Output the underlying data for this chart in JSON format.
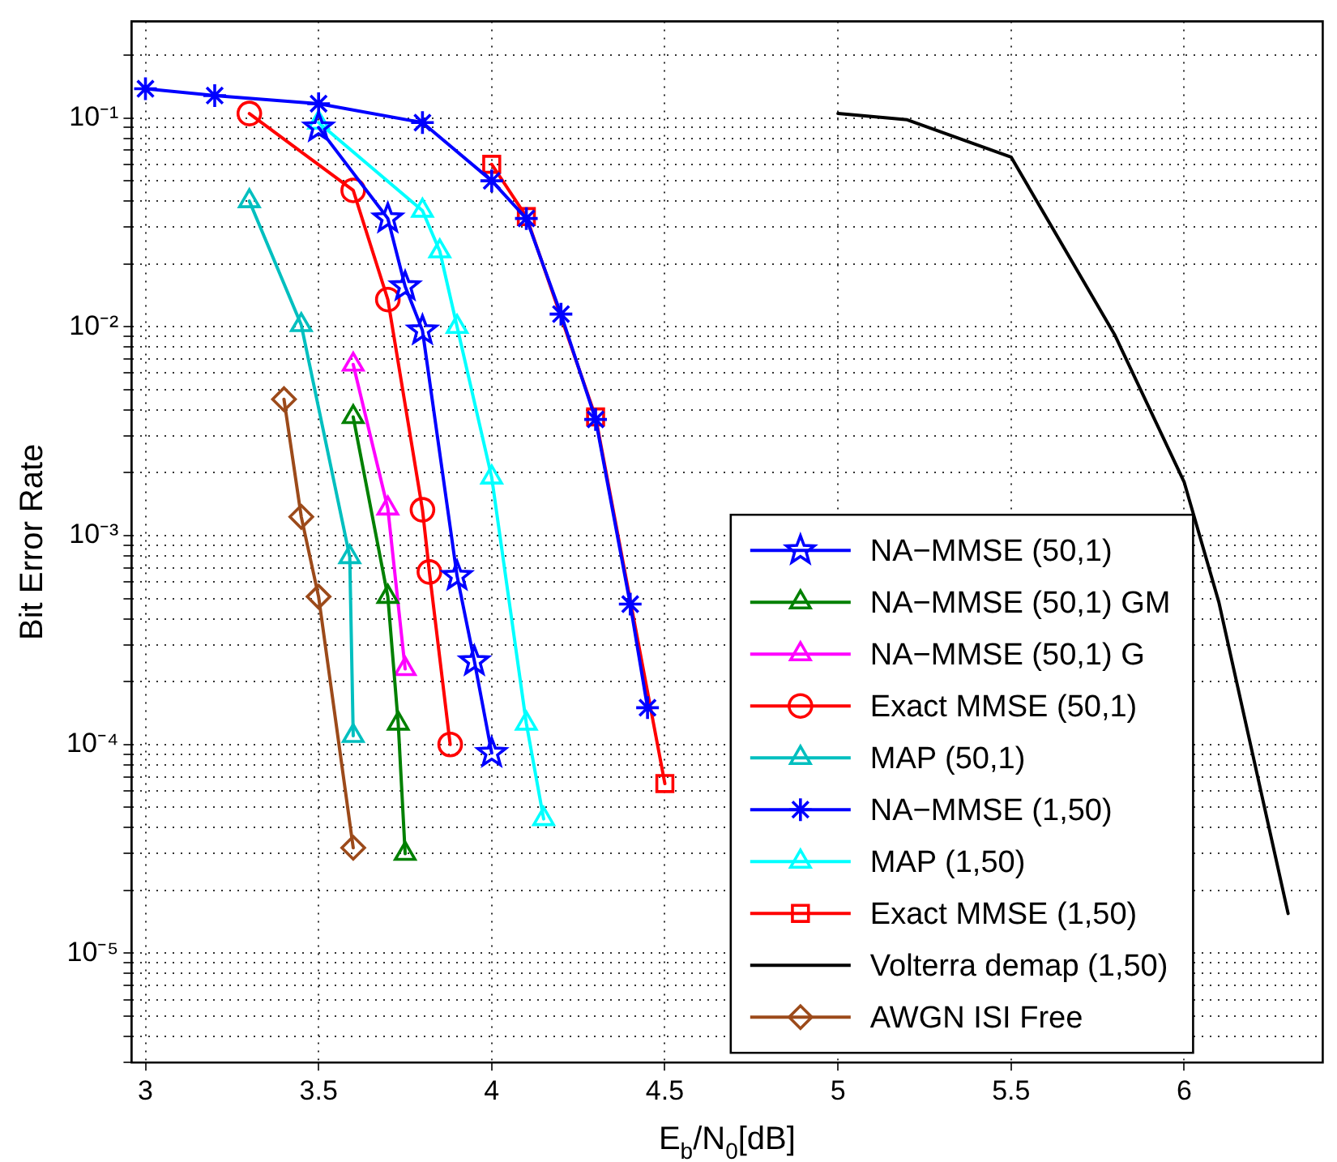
{
  "chart_data": {
    "type": "line",
    "xlabel": "E$_{b}$/N$_{0}$[dB]",
    "ylabel": "Bit Error Rate",
    "log": "y",
    "grid": true,
    "legend": "bottom right",
    "line_style": "solid",
    "xlim": [
      2.96,
      6.4
    ],
    "xticks": [
      3,
      3.5,
      4,
      4.5,
      5,
      5.5,
      6
    ],
    "ylim": [
      3e-06,
      0.29
    ],
    "yticks": [
      {
        "value": 3e-06,
        "label": null
      },
      {
        "value": 4e-06,
        "label": null
      },
      {
        "value": 5e-06,
        "label": null
      },
      {
        "value": 6e-06,
        "label": null
      },
      {
        "value": 7e-06,
        "label": null
      },
      {
        "value": 8e-06,
        "label": null
      },
      {
        "value": 9e-06,
        "label": null
      },
      {
        "value": 1e-05,
        "label": "10⁻⁵"
      },
      {
        "value": 2e-05,
        "label": null
      },
      {
        "value": 3e-05,
        "label": null
      },
      {
        "value": 4e-05,
        "label": null
      },
      {
        "value": 5e-05,
        "label": null
      },
      {
        "value": 6e-05,
        "label": null
      },
      {
        "value": 7e-05,
        "label": null
      },
      {
        "value": 8e-05,
        "label": null
      },
      {
        "value": 9e-05,
        "label": null
      },
      {
        "value": 0.0001,
        "label": "10⁻⁴"
      },
      {
        "value": 0.0002,
        "label": null
      },
      {
        "value": 0.0003,
        "label": null
      },
      {
        "value": 0.0004,
        "label": null
      },
      {
        "value": 0.0005,
        "label": null
      },
      {
        "value": 0.0006,
        "label": null
      },
      {
        "value": 0.0007,
        "label": null
      },
      {
        "value": 0.0008,
        "label": null
      },
      {
        "value": 0.0009,
        "label": null
      },
      {
        "value": 0.001,
        "label": "10⁻³"
      },
      {
        "value": 0.002,
        "label": null
      },
      {
        "value": 0.003,
        "label": null
      },
      {
        "value": 0.004,
        "label": null
      },
      {
        "value": 0.005,
        "label": null
      },
      {
        "value": 0.006,
        "label": null
      },
      {
        "value": 0.007,
        "label": null
      },
      {
        "value": 0.008,
        "label": null
      },
      {
        "value": 0.009,
        "label": null
      },
      {
        "value": 0.01,
        "label": "10⁻²"
      },
      {
        "value": 0.02,
        "label": null
      },
      {
        "value": 0.03,
        "label": null
      },
      {
        "value": 0.04,
        "label": null
      },
      {
        "value": 0.05,
        "label": null
      },
      {
        "value": 0.06,
        "label": null
      },
      {
        "value": 0.07,
        "label": null
      },
      {
        "value": 0.08,
        "label": null
      },
      {
        "value": 0.09,
        "label": null
      },
      {
        "value": 0.1,
        "label": "10⁻¹"
      },
      {
        "value": 0.2,
        "label": null
      }
    ],
    "series": [
      {
        "name": "NA−MMSE (50,1)",
        "color": "#0000ff",
        "marker": "star",
        "x": [
          3.5,
          3.7,
          3.75,
          3.8,
          3.9,
          3.95,
          4.0
        ],
        "values": [
          0.09,
          0.033,
          0.0156,
          0.0096,
          0.00064,
          0.00025,
          9.1e-05
        ]
      },
      {
        "name": "NA−MMSE (50,1) GM",
        "color": "#008000",
        "marker": "triangle",
        "x": [
          3.6,
          3.7,
          3.73,
          3.75
        ],
        "values": [
          0.0037,
          0.00051,
          0.000126,
          3e-05
        ]
      },
      {
        "name": "NA−MMSE (50,1) G",
        "color": "#ff00ff",
        "marker": "triangle",
        "x": [
          3.6,
          3.7,
          3.75
        ],
        "values": [
          0.0066,
          0.00135,
          0.00023
        ]
      },
      {
        "name": "Exact MMSE (50,1)",
        "color": "#ff0000",
        "marker": "circle",
        "x": [
          3.3,
          3.6,
          3.7,
          3.8,
          3.82,
          3.88
        ],
        "values": [
          0.105,
          0.045,
          0.0135,
          0.00133,
          0.00067,
          0.0001
        ]
      },
      {
        "name": "MAP (50,1)",
        "color": "#00bfbf",
        "marker": "triangle",
        "x": [
          3.3,
          3.45,
          3.59,
          3.6
        ],
        "values": [
          0.04,
          0.0102,
          0.00079,
          0.00011
        ]
      },
      {
        "name": "NA−MMSE (1,50)",
        "color": "#0000ff",
        "marker": "cross",
        "x": [
          3.0,
          3.2,
          3.5,
          3.8,
          4.0,
          4.1,
          4.2,
          4.3,
          4.4,
          4.45
        ],
        "values": [
          0.138,
          0.128,
          0.117,
          0.095,
          0.05,
          0.033,
          0.0115,
          0.0036,
          0.00047,
          0.00015
        ]
      },
      {
        "name": "MAP (1,50)",
        "color": "#00ffff",
        "marker": "triangle",
        "x": [
          3.5,
          3.8,
          3.85,
          3.9,
          4.0,
          4.1,
          4.15
        ],
        "values": [
          0.095,
          0.036,
          0.023,
          0.01,
          0.0019,
          0.000126,
          4.4e-05
        ]
      },
      {
        "name": "Exact MMSE (1,50)",
        "color": "#ff0000",
        "marker": "square",
        "x": [
          4.0,
          4.1,
          4.3,
          4.5
        ],
        "values": [
          0.06,
          0.0337,
          0.0037,
          6.5e-05
        ]
      },
      {
        "name": "Volterra demap (1,50)",
        "color": "#000000",
        "marker": "none",
        "x": [
          5.0,
          5.2,
          5.5,
          5.8,
          6.0,
          6.1,
          6.3
        ],
        "values": [
          0.105,
          0.098,
          0.065,
          0.0091,
          0.0018,
          0.00048,
          1.55e-05
        ]
      },
      {
        "name": "AWGN ISI Free",
        "color": "#9c4a1a",
        "marker": "diamond",
        "x": [
          3.4,
          3.45,
          3.5,
          3.6
        ],
        "values": [
          0.0045,
          0.00123,
          0.00051,
          3.2e-05
        ]
      }
    ]
  }
}
